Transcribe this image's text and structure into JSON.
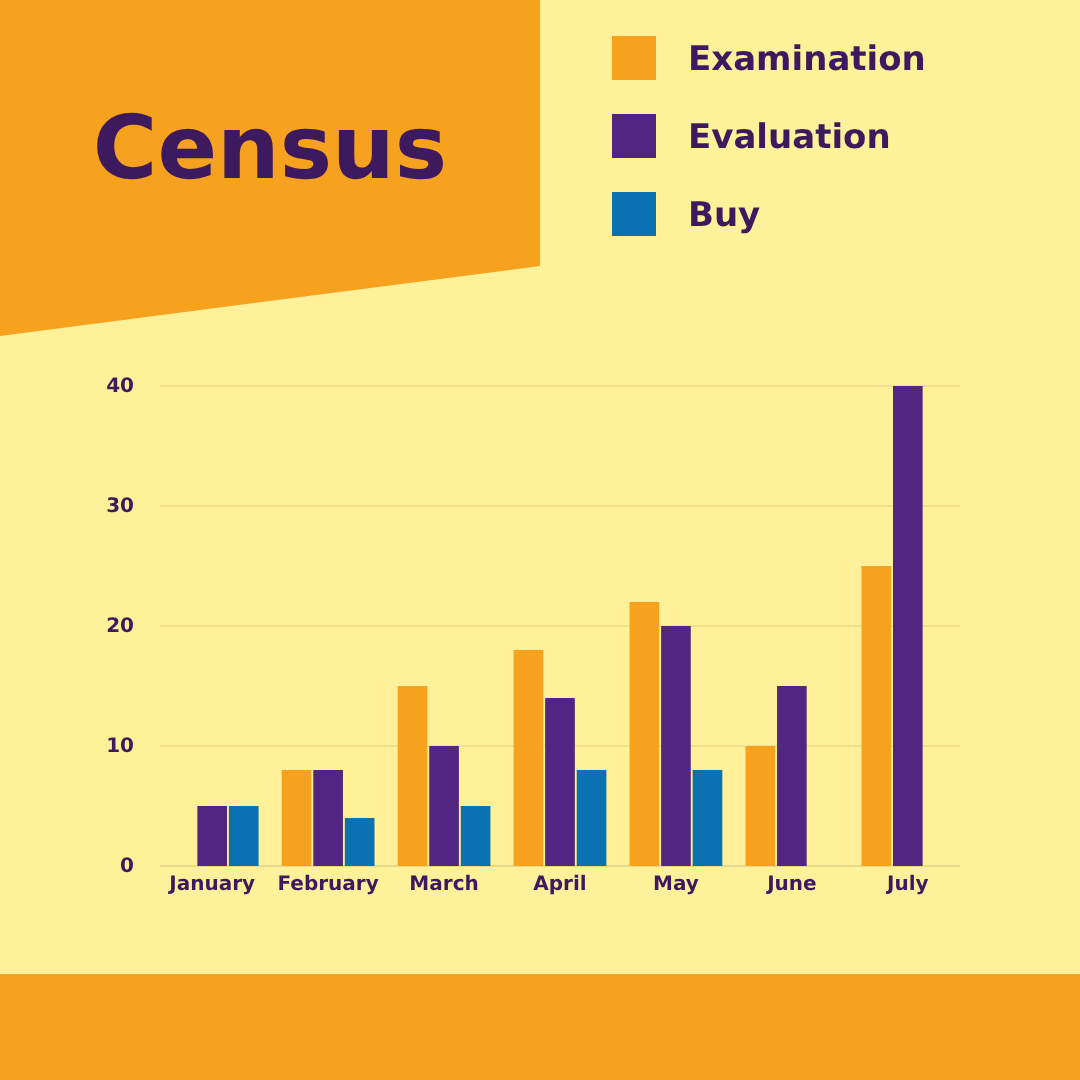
{
  "chart_data": {
    "type": "bar",
    "title": "Census",
    "categories": [
      "January",
      "February",
      "March",
      "April",
      "May",
      "June",
      "July"
    ],
    "series": [
      {
        "name": "Examination",
        "color": "#f6a21e",
        "values": [
          null,
          8,
          15,
          18,
          22,
          10,
          25
        ]
      },
      {
        "name": "Evaluation",
        "color": "#522583",
        "values": [
          5,
          8,
          10,
          14,
          20,
          15,
          40
        ]
      },
      {
        "name": "Buy",
        "color": "#0a72b0",
        "values": [
          5,
          4,
          5,
          8,
          8,
          null,
          null
        ]
      }
    ],
    "ylim": [
      0,
      40
    ],
    "yticks": [
      0,
      10,
      20,
      30,
      40
    ],
    "grid": "y",
    "legend": "top right"
  }
}
